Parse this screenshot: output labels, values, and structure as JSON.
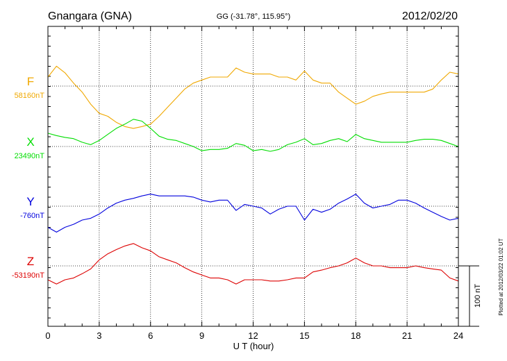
{
  "header": {
    "station": "Gnangara (GNA)",
    "coords": "GG (-31.78°, 115.95°)",
    "date": "2012/02/20"
  },
  "footer": {
    "plotted": "Plotted at 2012/03/22 01:02 UT"
  },
  "scale_bar_label": "100 nT",
  "chart_data": {
    "type": "line",
    "xlabel": "U T (hour)",
    "xlim": [
      0,
      24
    ],
    "xticks": [
      "0",
      "3",
      "6",
      "9",
      "12",
      "15",
      "18",
      "21",
      "24"
    ],
    "scale_nT": 100,
    "series": [
      {
        "name": "F",
        "baseline_label": "58160nT",
        "color": "#f0a800",
        "baseline": 58160,
        "x": [
          0,
          0.5,
          1,
          1.5,
          2,
          2.5,
          3,
          3.5,
          4,
          4.5,
          5,
          5.5,
          6,
          6.5,
          7,
          7.5,
          8,
          8.5,
          9,
          9.5,
          10,
          10.5,
          11,
          11.5,
          12,
          12.5,
          13,
          13.5,
          14,
          14.5,
          15,
          15.5,
          16,
          16.5,
          17,
          17.5,
          18,
          18.5,
          19,
          19.5,
          20,
          20.5,
          21,
          21.5,
          22,
          22.5,
          23,
          23.5,
          24
        ],
        "values": [
          58175,
          58193,
          58182,
          58165,
          58150,
          58130,
          58115,
          58110,
          58100,
          58093,
          58090,
          58093,
          58097,
          58110,
          58125,
          58140,
          58155,
          58165,
          58170,
          58175,
          58175,
          58175,
          58190,
          58183,
          58180,
          58180,
          58180,
          58175,
          58175,
          58170,
          58185,
          58170,
          58165,
          58165,
          58150,
          58140,
          58130,
          58135,
          58143,
          58147,
          58150,
          58150,
          58150,
          58150,
          58150,
          58155,
          58170,
          58183,
          58180
        ]
      },
      {
        "name": "X",
        "baseline_label": "23490nT",
        "color": "#00dd00",
        "baseline": 23490,
        "x": [
          0,
          0.5,
          1,
          1.5,
          2,
          2.5,
          3,
          3.5,
          4,
          4.5,
          5,
          5.5,
          6,
          6.5,
          7,
          7.5,
          8,
          8.5,
          9,
          9.5,
          10,
          10.5,
          11,
          11.5,
          12,
          12.5,
          13,
          13.5,
          14,
          14.5,
          15,
          15.5,
          16,
          16.5,
          17,
          17.5,
          18,
          18.5,
          19,
          19.5,
          20,
          20.5,
          21,
          21.5,
          22,
          22.5,
          23,
          23.5,
          24
        ],
        "values": [
          23512,
          23508,
          23505,
          23503,
          23497,
          23493,
          23500,
          23510,
          23520,
          23527,
          23535,
          23532,
          23520,
          23507,
          23502,
          23500,
          23495,
          23490,
          23483,
          23485,
          23485,
          23487,
          23495,
          23492,
          23483,
          23485,
          23482,
          23485,
          23493,
          23497,
          23503,
          23493,
          23495,
          23500,
          23503,
          23498,
          23510,
          23503,
          23500,
          23497,
          23497,
          23497,
          23497,
          23500,
          23502,
          23502,
          23500,
          23495,
          23490
        ]
      },
      {
        "name": "Y",
        "baseline_label": "-760nT",
        "color": "#0000dd",
        "baseline": -760,
        "x": [
          0,
          0.5,
          1,
          1.5,
          2,
          2.5,
          3,
          3.5,
          4,
          4.5,
          5,
          5.5,
          6,
          6.5,
          7,
          7.5,
          8,
          8.5,
          9,
          9.5,
          10,
          10.5,
          11,
          11.5,
          12,
          12.5,
          13,
          13.5,
          14,
          14.5,
          15,
          15.5,
          16,
          16.5,
          17,
          17.5,
          18,
          18.5,
          19,
          19.5,
          20,
          20.5,
          21,
          21.5,
          22,
          22.5,
          23,
          23.5,
          24
        ],
        "values": [
          -795,
          -803,
          -795,
          -790,
          -783,
          -780,
          -773,
          -763,
          -755,
          -750,
          -747,
          -743,
          -740,
          -743,
          -743,
          -743,
          -743,
          -745,
          -750,
          -753,
          -750,
          -750,
          -767,
          -757,
          -760,
          -763,
          -773,
          -765,
          -760,
          -760,
          -783,
          -765,
          -770,
          -765,
          -755,
          -748,
          -740,
          -755,
          -763,
          -760,
          -757,
          -750,
          -750,
          -755,
          -763,
          -770,
          -777,
          -783,
          -780
        ]
      },
      {
        "name": "Z",
        "baseline_label": "-53190nT",
        "color": "#dd0000",
        "baseline": -53190,
        "x": [
          0,
          0.5,
          1,
          1.5,
          2,
          2.5,
          3,
          3.5,
          4,
          4.5,
          5,
          5.5,
          6,
          6.5,
          7,
          7.5,
          8,
          8.5,
          9,
          9.5,
          10,
          10.5,
          11,
          11.5,
          12,
          12.5,
          13,
          13.5,
          14,
          14.5,
          15,
          15.5,
          16,
          16.5,
          17,
          17.5,
          18,
          18.5,
          19,
          19.5,
          20,
          20.5,
          21,
          21.5,
          22,
          22.5,
          23,
          23.5,
          24
        ],
        "values": [
          -53213,
          -53220,
          -53213,
          -53210,
          -53203,
          -53195,
          -53180,
          -53170,
          -53163,
          -53157,
          -53153,
          -53160,
          -53165,
          -53175,
          -53180,
          -53185,
          -53193,
          -53200,
          -53205,
          -53210,
          -53210,
          -53213,
          -53220,
          -53213,
          -53213,
          -53213,
          -53215,
          -53215,
          -53213,
          -53210,
          -53210,
          -53200,
          -53197,
          -53193,
          -53190,
          -53185,
          -53177,
          -53185,
          -53190,
          -53190,
          -53193,
          -53193,
          -53193,
          -53190,
          -53193,
          -53195,
          -53197,
          -53210,
          -53215
        ]
      }
    ]
  }
}
